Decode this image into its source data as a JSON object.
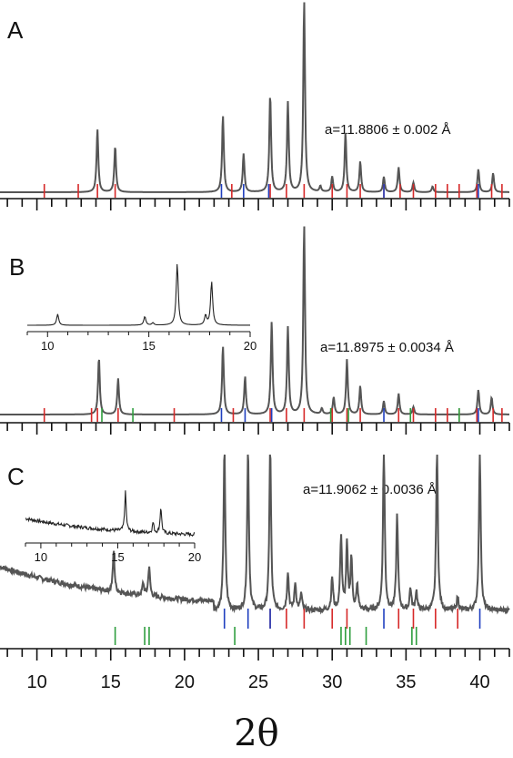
{
  "chart_data": {
    "type": "line",
    "xlabel": "2θ",
    "xlim": [
      7.5,
      42
    ],
    "x_ticks": [
      10,
      15,
      20,
      25,
      30,
      35,
      40
    ],
    "colors": {
      "trace": "#555555",
      "red": "#d62828",
      "blue": "#1f3fbf",
      "green": "#2e9e3e"
    },
    "panels": [
      {
        "label": "A",
        "lattice": "a=11.8806 ± 0.002 Å",
        "peaks": [
          [
            14.1,
            0.33
          ],
          [
            15.3,
            0.24
          ],
          [
            22.6,
            0.4
          ],
          [
            24.0,
            0.2
          ],
          [
            25.8,
            0.51
          ],
          [
            27.0,
            0.47
          ],
          [
            28.1,
            1.0
          ],
          [
            29.2,
            0.03
          ],
          [
            30.0,
            0.08
          ],
          [
            30.9,
            0.31
          ],
          [
            31.9,
            0.16
          ],
          [
            33.5,
            0.08
          ],
          [
            34.5,
            0.13
          ],
          [
            35.5,
            0.05
          ],
          [
            36.8,
            0.03
          ],
          [
            39.9,
            0.12
          ],
          [
            40.9,
            0.1
          ]
        ],
        "markers_red": [
          10.5,
          12.8,
          14.1,
          15.3,
          23.2,
          25.8,
          26.9,
          28.1,
          30.0,
          31.0,
          31.9,
          33.5,
          34.6,
          35.5,
          37.0,
          37.8,
          38.6,
          39.8,
          40.8,
          41.5
        ],
        "markers_blue": [
          22.5,
          24.0,
          25.7,
          33.5,
          39.9
        ],
        "markers_green": []
      },
      {
        "label": "B",
        "lattice": "a=11.8975 ± 0.0034 Å",
        "peaks": [
          [
            14.2,
            0.3
          ],
          [
            15.5,
            0.19
          ],
          [
            22.6,
            0.36
          ],
          [
            24.1,
            0.2
          ],
          [
            25.9,
            0.49
          ],
          [
            27.0,
            0.46
          ],
          [
            28.1,
            1.0
          ],
          [
            29.3,
            0.03
          ],
          [
            30.1,
            0.09
          ],
          [
            31.0,
            0.29
          ],
          [
            31.9,
            0.15
          ],
          [
            33.5,
            0.07
          ],
          [
            34.5,
            0.11
          ],
          [
            35.5,
            0.04
          ],
          [
            39.9,
            0.13
          ],
          [
            40.8,
            0.09
          ]
        ],
        "markers_red": [
          10.5,
          13.7,
          14.1,
          15.5,
          19.3,
          23.3,
          25.8,
          26.9,
          28.1,
          30.0,
          31.0,
          31.9,
          34.5,
          35.5,
          37.0,
          37.8,
          38.6,
          39.8,
          40.9,
          41.5
        ],
        "markers_blue": [
          22.5,
          24.1,
          25.9,
          33.5,
          39.9
        ],
        "markers_green": [
          14.4,
          16.5,
          29.9,
          31.1,
          35.3,
          38.6
        ],
        "inset": {
          "xlim": [
            9,
            20
          ],
          "x_ticks": [
            10,
            15,
            20
          ],
          "peaks": [
            [
              10.5,
              0.14
            ],
            [
              14.8,
              0.11
            ],
            [
              15.2,
              0.03
            ],
            [
              16.4,
              0.78
            ],
            [
              17.8,
              0.12
            ],
            [
              18.1,
              0.55
            ]
          ]
        }
      },
      {
        "label": "C",
        "lattice": "a=11.9062 ± 0.0036 Å",
        "baseline_start": 0.32,
        "peaks": [
          [
            15.2,
            0.3
          ],
          [
            17.2,
            0.09
          ],
          [
            17.6,
            0.22
          ],
          [
            22.7,
            1.2
          ],
          [
            24.3,
            1.2
          ],
          [
            25.8,
            1.2
          ],
          [
            27.0,
            0.28
          ],
          [
            27.5,
            0.2
          ],
          [
            27.9,
            0.12
          ],
          [
            30.0,
            0.24
          ],
          [
            30.6,
            0.55
          ],
          [
            31.0,
            0.48
          ],
          [
            31.3,
            0.38
          ],
          [
            31.7,
            0.18
          ],
          [
            33.5,
            1.2
          ],
          [
            34.4,
            0.7
          ],
          [
            35.3,
            0.16
          ],
          [
            35.7,
            0.14
          ],
          [
            37.1,
            1.2
          ],
          [
            38.5,
            0.1
          ],
          [
            40.0,
            1.2
          ]
        ],
        "markers_red": [
          25.8,
          26.9,
          28.1,
          30.0,
          31.0,
          34.5,
          35.5,
          37.0,
          38.5
        ],
        "markers_blue": [
          22.7,
          24.3,
          25.8,
          33.5,
          40.0
        ],
        "markers_green": [
          15.3,
          17.3,
          17.6,
          23.4,
          30.6,
          30.9,
          31.2,
          32.3,
          35.4,
          35.7
        ],
        "inset": {
          "xlim": [
            9,
            20
          ],
          "x_ticks": [
            10,
            15,
            20
          ],
          "peaks": [
            [
              15.5,
              0.45
            ],
            [
              17.3,
              0.12
            ],
            [
              17.8,
              0.3
            ]
          ]
        }
      }
    ]
  }
}
